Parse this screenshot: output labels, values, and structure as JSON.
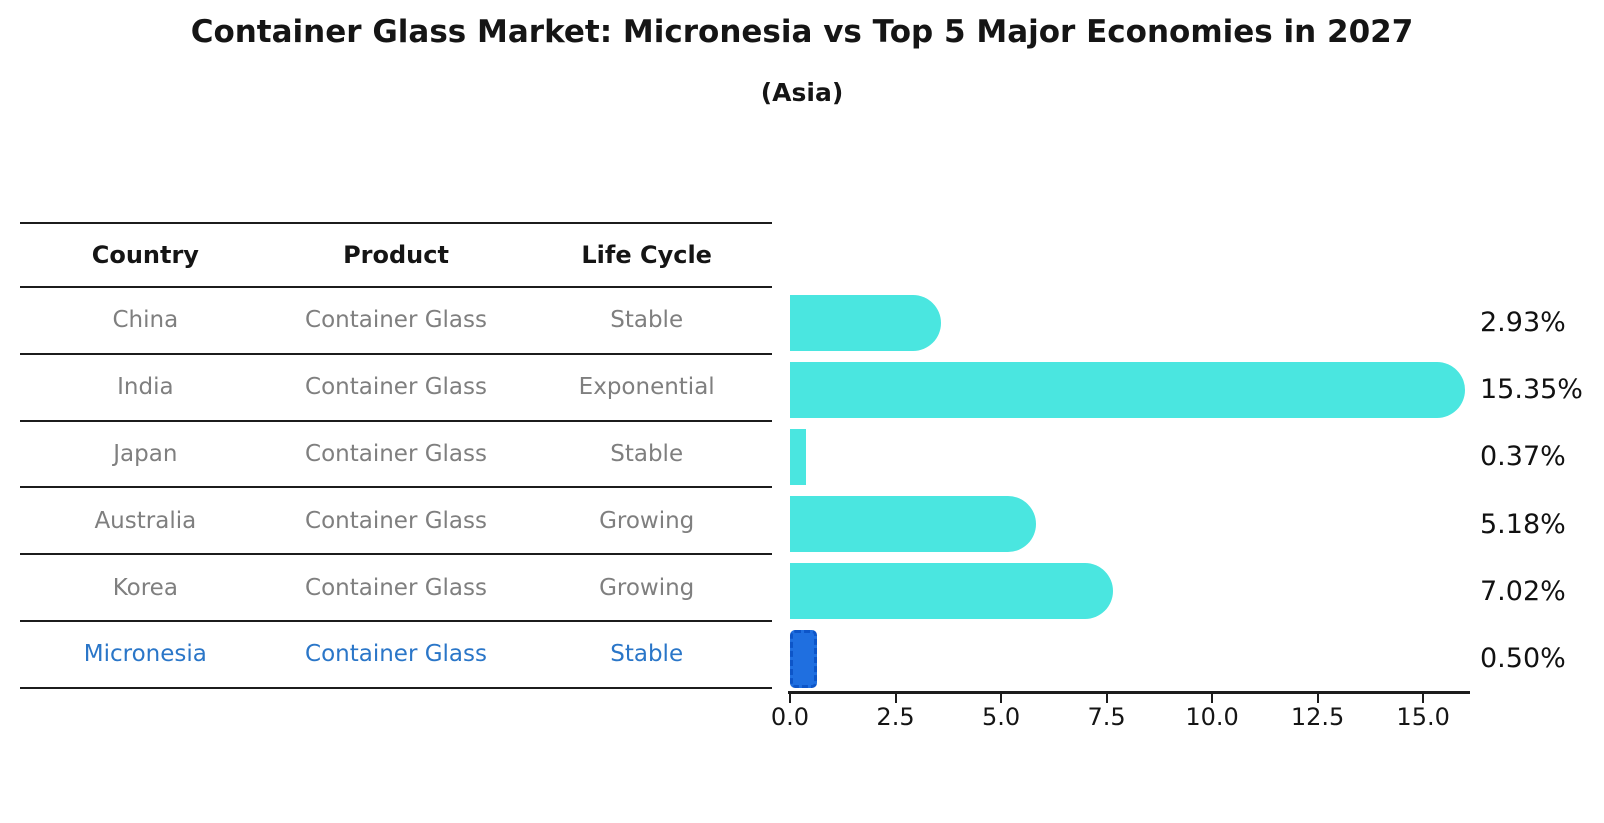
{
  "title": "Container Glass Market: Micronesia vs Top 5 Major Economies in 2027",
  "subtitle": "(Asia)",
  "table": {
    "headers": [
      "Country",
      "Product",
      "Life Cycle"
    ],
    "rows": [
      {
        "country": "China",
        "product": "Container Glass",
        "life_cycle": "Stable",
        "value": 2.93,
        "value_label": "2.93%",
        "highlight": false
      },
      {
        "country": "India",
        "product": "Container Glass",
        "life_cycle": "Exponential",
        "value": 15.35,
        "value_label": "15.35%",
        "highlight": false
      },
      {
        "country": "Japan",
        "product": "Container Glass",
        "life_cycle": "Stable",
        "value": 0.37,
        "value_label": "0.37%",
        "highlight": false
      },
      {
        "country": "Australia",
        "product": "Container Glass",
        "life_cycle": "Growing",
        "value": 5.18,
        "value_label": "5.18%",
        "highlight": false
      },
      {
        "country": "Korea",
        "product": "Container Glass",
        "life_cycle": "Growing",
        "value": 7.02,
        "value_label": "7.02%",
        "highlight": false
      },
      {
        "country": "Micronesia",
        "product": "Container Glass",
        "life_cycle": "Stable",
        "value": 0.5,
        "value_label": "0.50%",
        "highlight": true
      }
    ]
  },
  "chart_data": {
    "type": "bar",
    "orientation": "horizontal",
    "title": "Container Glass Market: Micronesia vs Top 5 Major Economies in 2027",
    "subtitle": "(Asia)",
    "categories": [
      "China",
      "India",
      "Japan",
      "Australia",
      "Korea",
      "Micronesia"
    ],
    "values": [
      2.93,
      15.35,
      0.37,
      5.18,
      7.02,
      0.5
    ],
    "data_labels": [
      "2.93%",
      "15.35%",
      "0.37%",
      "5.18%",
      "7.02%",
      "0.50%"
    ],
    "xlabel": "",
    "ylabel": "",
    "xlim": [
      0,
      16.11
    ],
    "x_ticks": [
      0.0,
      2.5,
      5.0,
      7.5,
      10.0,
      12.5,
      15.0
    ],
    "x_tick_labels": [
      "0.0",
      "2.5",
      "5.0",
      "7.5",
      "10.0",
      "12.5",
      "15.0"
    ],
    "grid": false,
    "legend": false,
    "bar_color": "#4ae6e0",
    "highlight_bar_color": "#1f6fe0",
    "highlight_text_color": "#2a76c8"
  }
}
